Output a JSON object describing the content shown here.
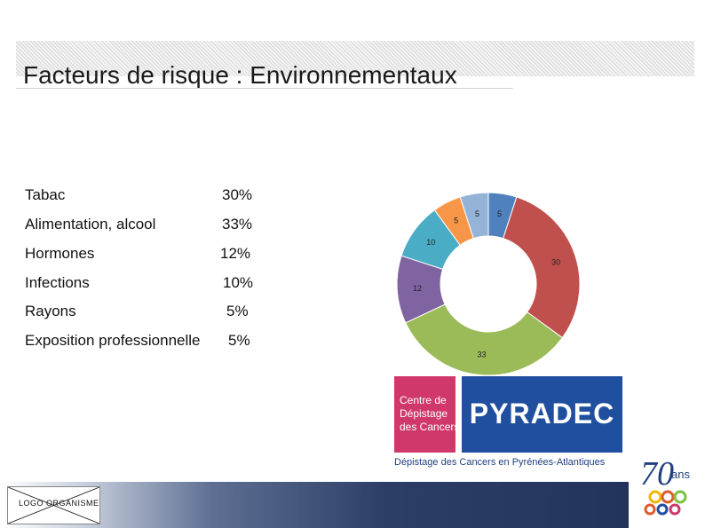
{
  "slide": {
    "title": "Facteurs de risque : Environnementaux"
  },
  "risk_factors": [
    {
      "label": "Tabac",
      "value": "30%"
    },
    {
      "label": "Alimentation, alcool",
      "value": "33%"
    },
    {
      "label": "Hormones",
      "value": "12%"
    },
    {
      "label": "Infections",
      "value": "10%"
    },
    {
      "label": "Rayons",
      "value": "5%"
    },
    {
      "label": "Exposition professionnelle",
      "value": "5%"
    }
  ],
  "chart_data": {
    "type": "pie",
    "subtype": "donut",
    "start": "top, clockwise",
    "slices": [
      {
        "value": 5,
        "label": "5",
        "color": "#4f81bd"
      },
      {
        "value": 30,
        "label": "30",
        "color": "#c0504d"
      },
      {
        "value": 33,
        "label": "33",
        "color": "#9bbb59"
      },
      {
        "value": 12,
        "label": "12",
        "color": "#8064a2"
      },
      {
        "value": 10,
        "label": "10",
        "color": "#4bacc6"
      },
      {
        "value": 5,
        "label": "5",
        "color": "#f79646"
      },
      {
        "value": 5,
        "label": "5",
        "color": "#95b3d7"
      }
    ]
  },
  "logos": {
    "pink_text": "Centre de\nDépistage\ndes Cancers",
    "blue_text": "PYRADEC",
    "caption": "Dépistage des Cancers en Pyrénées-Atlantiques",
    "org_placeholder": "LOGO ORGANISME",
    "anniversary_number": "70",
    "anniversary_suffix": "ans"
  },
  "colors": {
    "pink": "#d0386b",
    "blue": "#1f4f9e",
    "navy": "#203159"
  }
}
